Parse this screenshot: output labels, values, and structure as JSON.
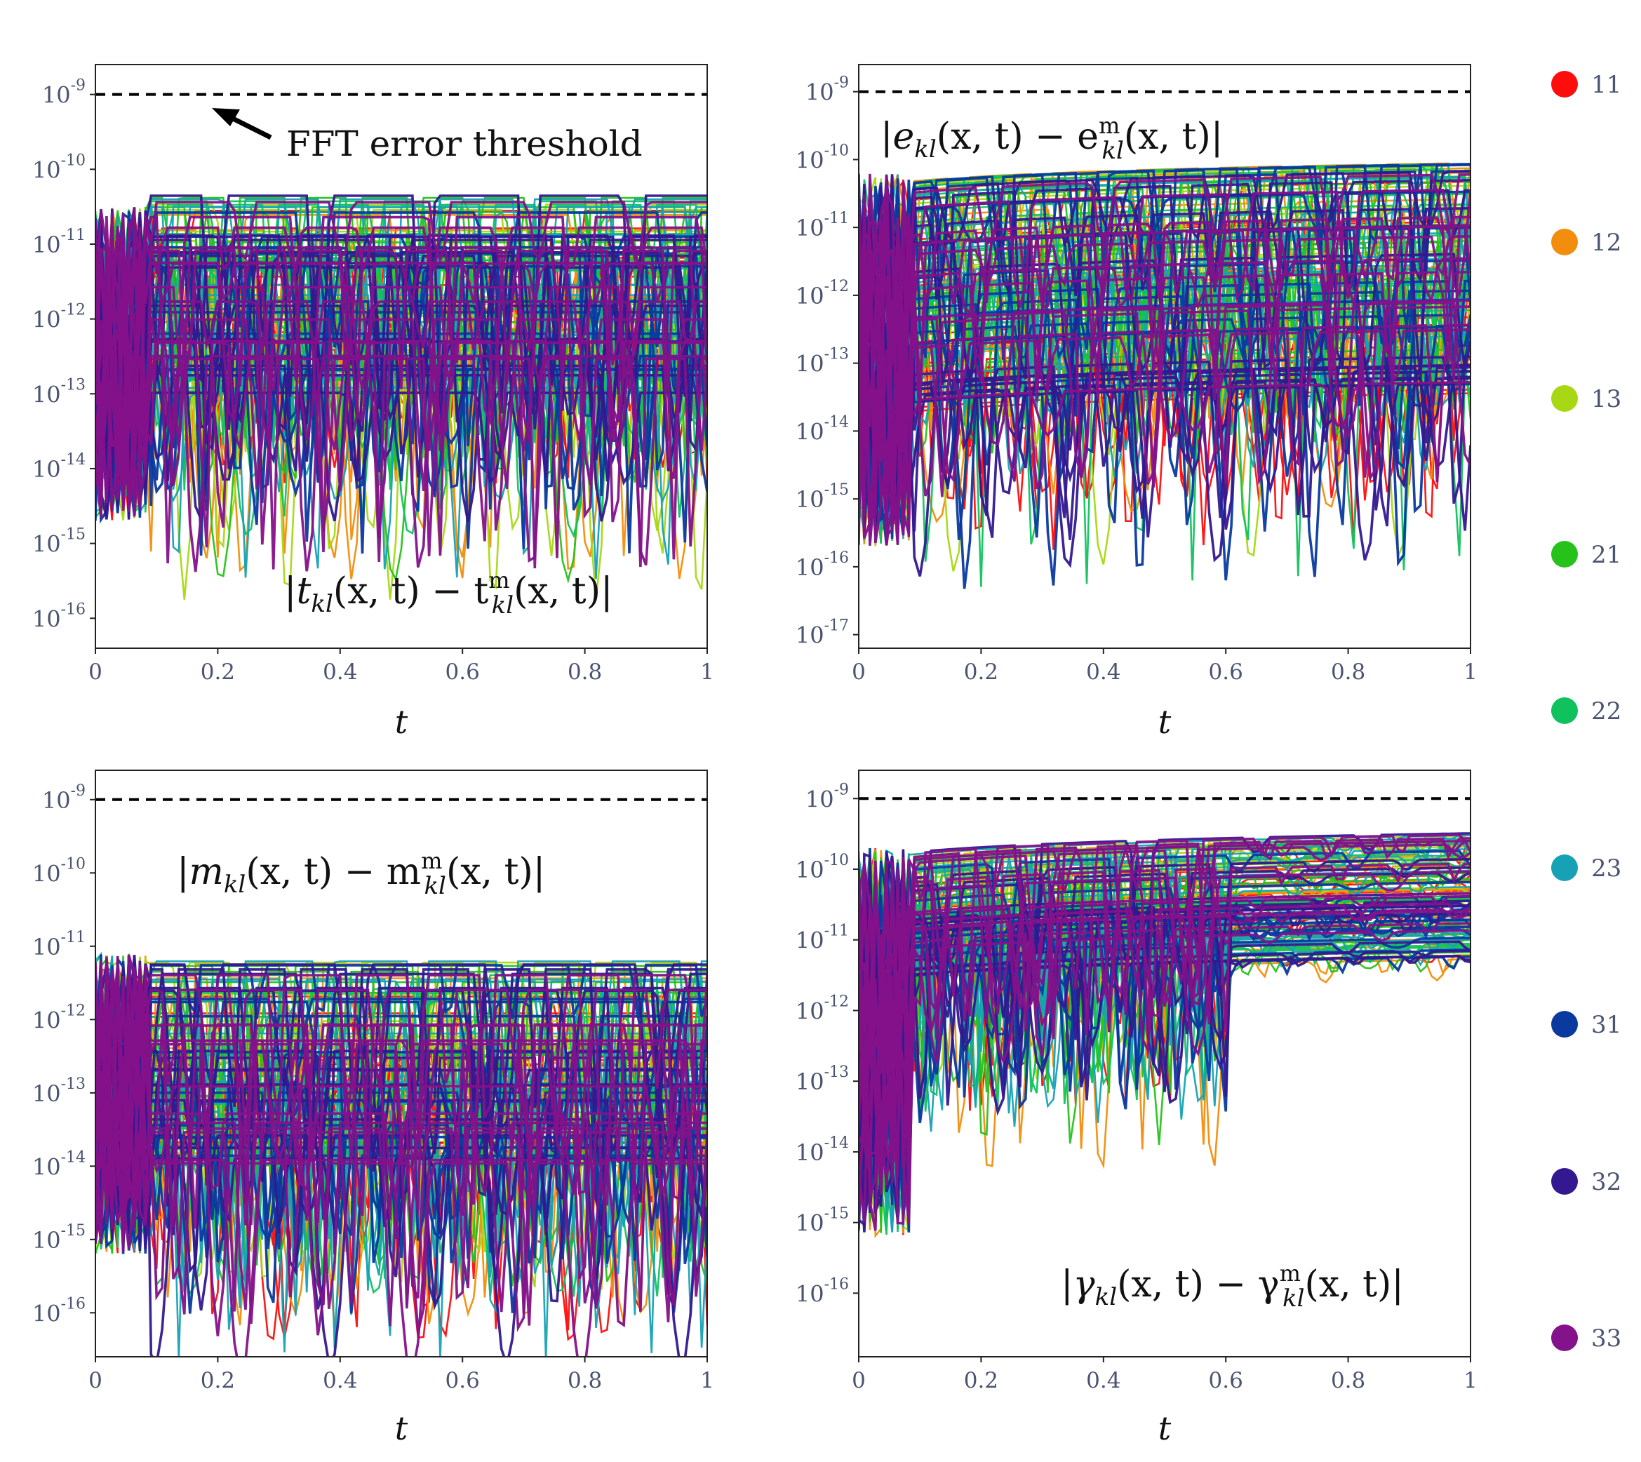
{
  "chart_data": [
    {
      "type": "line",
      "panel": "top-left",
      "title": "|t_kl(x,t) − t^m_kl(x,t)|",
      "formula": {
        "pre": "|t",
        "sub1": "kl",
        "mid": "(x, t) − t",
        "sup": "m",
        "sub2": "kl",
        "post": "(x, t)|"
      },
      "xlabel": "t",
      "ylabel": "",
      "xlim": [
        0,
        1
      ],
      "ylim_log10": [
        -16.4,
        -8.6
      ],
      "xticks": [
        "0",
        "0.2",
        "0.4",
        "0.6",
        "0.8",
        "1"
      ],
      "yticks_exp": [
        "-9",
        "-10",
        "-11",
        "-12",
        "-13",
        "-14",
        "-15",
        "-16"
      ],
      "threshold_log10": -9,
      "annotation": "FFT error threshold",
      "band_log10": [
        -14.5,
        -10.3
      ],
      "settled_range_log10": [
        -13.0,
        -10.3
      ],
      "note": "many overlapping error curves for component indices 11..33"
    },
    {
      "type": "line",
      "panel": "top-right",
      "title": "|e_kl(x,t) − e^m_kl(x,t)|",
      "formula": {
        "pre": "|e",
        "sub1": "kl",
        "mid": "(x, t) − e",
        "sup": "m",
        "sub2": "kl",
        "post": "(x, t)|"
      },
      "xlabel": "t",
      "ylabel": "",
      "xlim": [
        0,
        1
      ],
      "ylim_log10": [
        -17.2,
        -8.6
      ],
      "xticks": [
        "0",
        "0.2",
        "0.4",
        "0.6",
        "0.8",
        "1"
      ],
      "yticks_exp": [
        "-9",
        "-10",
        "-11",
        "-12",
        "-13",
        "-14",
        "-15",
        "-16",
        "-17"
      ],
      "threshold_log10": -9,
      "band_log10": [
        -15.5,
        -10.0
      ],
      "settled_range_log10": [
        -13.5,
        -10.0
      ]
    },
    {
      "type": "line",
      "panel": "bottom-left",
      "title": "|m_kl(x,t) − m^m_kl(x,t)|",
      "formula": {
        "pre": "|m",
        "sub1": "kl",
        "mid": "(x, t) − m",
        "sup": "m",
        "sub2": "kl",
        "post": "(x, t)|"
      },
      "xlabel": "t",
      "ylabel": "",
      "xlim": [
        0,
        1
      ],
      "ylim_log10": [
        -16.6,
        -8.6
      ],
      "xticks": [
        "0",
        "0.2",
        "0.4",
        "0.6",
        "0.8",
        "1"
      ],
      "yticks_exp": [
        "-9",
        "-10",
        "-11",
        "-12",
        "-13",
        "-14",
        "-15",
        "-16"
      ],
      "threshold_log10": -9,
      "band_log10": [
        -15.0,
        -10.9
      ],
      "settled_range_log10": [
        -14.0,
        -11.2
      ]
    },
    {
      "type": "line",
      "panel": "bottom-right",
      "title": "|γ_kl(x,t) − γ^m_kl(x,t)|",
      "formula": {
        "pre": "|γ",
        "sub1": "kl",
        "mid": "(x, t) − γ",
        "sup": "m",
        "sub2": "kl",
        "post": "(x, t)|"
      },
      "xlabel": "t",
      "ylabel": "",
      "xlim": [
        0,
        1
      ],
      "ylim_log10": [
        -16.9,
        -8.6
      ],
      "xticks": [
        "0",
        "0.2",
        "0.4",
        "0.6",
        "0.8",
        "1"
      ],
      "yticks_exp": [
        "-9",
        "-10",
        "-11",
        "-12",
        "-13",
        "-14",
        "-15",
        "-16"
      ],
      "threshold_log10": -9,
      "band_log10": [
        -15.0,
        -9.5
      ],
      "settled_range_log10": [
        -11.3,
        -9.5
      ]
    }
  ],
  "tick_base": "10",
  "legend": [
    {
      "label": "11",
      "color": "#ff0d0d"
    },
    {
      "label": "12",
      "color": "#f28e0c"
    },
    {
      "label": "13",
      "color": "#a8d814"
    },
    {
      "label": "21",
      "color": "#26c21a"
    },
    {
      "label": "22",
      "color": "#10c25e"
    },
    {
      "label": "23",
      "color": "#16a2b4"
    },
    {
      "label": "31",
      "color": "#0a3aa0"
    },
    {
      "label": "32",
      "color": "#341890"
    },
    {
      "label": "33",
      "color": "#84128a"
    }
  ]
}
